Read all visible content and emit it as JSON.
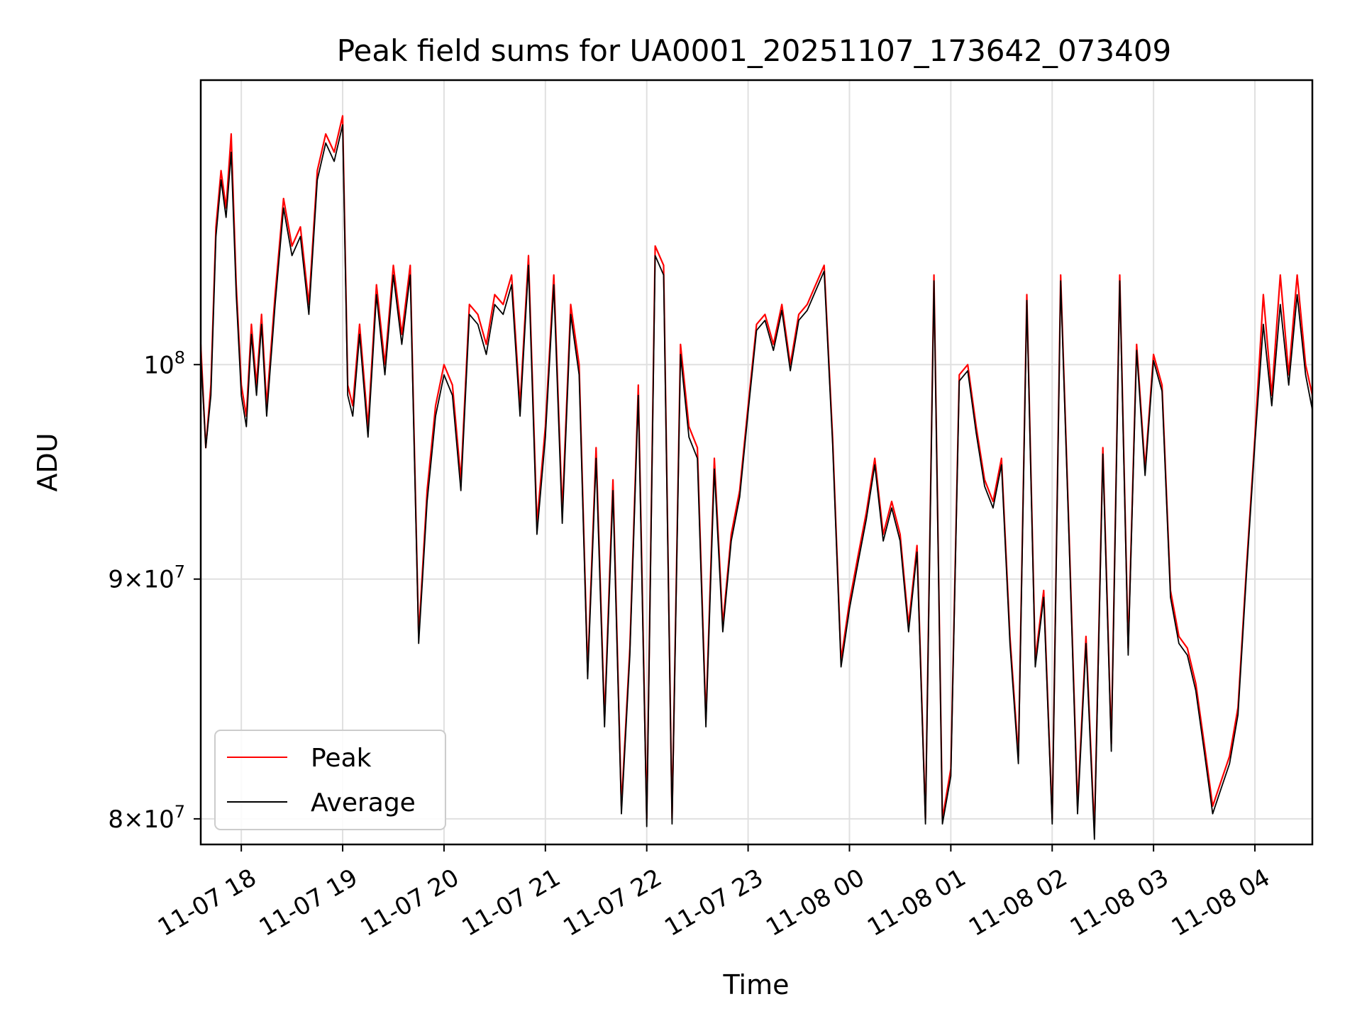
{
  "chart_data": {
    "type": "line",
    "title": "Peak field sums for UA0001_20251107_173642_073409",
    "xlabel": "Time",
    "ylabel": "ADU",
    "y_scale": "log",
    "xlim": [
      "2025-11-07 17:36",
      "2025-11-08 04:34"
    ],
    "ylim": [
      79000000,
      115000000
    ],
    "x_ticks": [
      {
        "value": "2025-11-07 18:00",
        "label": "11-07 18"
      },
      {
        "value": "2025-11-07 19:00",
        "label": "11-07 19"
      },
      {
        "value": "2025-11-07 20:00",
        "label": "11-07 20"
      },
      {
        "value": "2025-11-07 21:00",
        "label": "11-07 21"
      },
      {
        "value": "2025-11-07 22:00",
        "label": "11-07 22"
      },
      {
        "value": "2025-11-07 23:00",
        "label": "11-07 23"
      },
      {
        "value": "2025-11-08 00:00",
        "label": "11-08 00"
      },
      {
        "value": "2025-11-08 01:00",
        "label": "11-08 01"
      },
      {
        "value": "2025-11-08 02:00",
        "label": "11-08 02"
      },
      {
        "value": "2025-11-08 03:00",
        "label": "11-08 03"
      },
      {
        "value": "2025-11-08 04:00",
        "label": "11-08 04"
      }
    ],
    "y_ticks": [
      {
        "value": 80000000,
        "mantissa": "8",
        "exponent": "7"
      },
      {
        "value": 90000000,
        "mantissa": "9",
        "exponent": "7"
      },
      {
        "value": 100000000,
        "mantissa": "10",
        "exponent": "8"
      }
    ],
    "grid": true,
    "legend_position": "lower-left",
    "x": [
      "2025-11-07 17:36",
      "2025-11-07 17:39",
      "2025-11-07 17:42",
      "2025-11-07 17:45",
      "2025-11-07 17:48",
      "2025-11-07 17:51",
      "2025-11-07 17:54",
      "2025-11-07 17:57",
      "2025-11-07 18:00",
      "2025-11-07 18:03",
      "2025-11-07 18:06",
      "2025-11-07 18:09",
      "2025-11-07 18:12",
      "2025-11-07 18:15",
      "2025-11-07 18:20",
      "2025-11-07 18:25",
      "2025-11-07 18:30",
      "2025-11-07 18:35",
      "2025-11-07 18:40",
      "2025-11-07 18:45",
      "2025-11-07 18:50",
      "2025-11-07 18:55",
      "2025-11-07 19:00",
      "2025-11-07 19:03",
      "2025-11-07 19:06",
      "2025-11-07 19:10",
      "2025-11-07 19:15",
      "2025-11-07 19:20",
      "2025-11-07 19:25",
      "2025-11-07 19:30",
      "2025-11-07 19:35",
      "2025-11-07 19:40",
      "2025-11-07 19:45",
      "2025-11-07 19:50",
      "2025-11-07 19:55",
      "2025-11-07 20:00",
      "2025-11-07 20:05",
      "2025-11-07 20:10",
      "2025-11-07 20:15",
      "2025-11-07 20:20",
      "2025-11-07 20:25",
      "2025-11-07 20:30",
      "2025-11-07 20:35",
      "2025-11-07 20:40",
      "2025-11-07 20:45",
      "2025-11-07 20:50",
      "2025-11-07 20:55",
      "2025-11-07 21:00",
      "2025-11-07 21:05",
      "2025-11-07 21:10",
      "2025-11-07 21:15",
      "2025-11-07 21:20",
      "2025-11-07 21:25",
      "2025-11-07 21:30",
      "2025-11-07 21:35",
      "2025-11-07 21:40",
      "2025-11-07 21:45",
      "2025-11-07 21:50",
      "2025-11-07 21:55",
      "2025-11-07 22:00",
      "2025-11-07 22:05",
      "2025-11-07 22:10",
      "2025-11-07 22:15",
      "2025-11-07 22:20",
      "2025-11-07 22:25",
      "2025-11-07 22:30",
      "2025-11-07 22:35",
      "2025-11-07 22:40",
      "2025-11-07 22:45",
      "2025-11-07 22:50",
      "2025-11-07 22:55",
      "2025-11-07 23:00",
      "2025-11-07 23:05",
      "2025-11-07 23:10",
      "2025-11-07 23:15",
      "2025-11-07 23:20",
      "2025-11-07 23:25",
      "2025-11-07 23:30",
      "2025-11-07 23:35",
      "2025-11-07 23:40",
      "2025-11-07 23:45",
      "2025-11-07 23:50",
      "2025-11-07 23:55",
      "2025-11-08 00:00",
      "2025-11-08 00:05",
      "2025-11-08 00:10",
      "2025-11-08 00:15",
      "2025-11-08 00:20",
      "2025-11-08 00:25",
      "2025-11-08 00:30",
      "2025-11-08 00:35",
      "2025-11-08 00:40",
      "2025-11-08 00:45",
      "2025-11-08 00:50",
      "2025-11-08 00:55",
      "2025-11-08 01:00",
      "2025-11-08 01:05",
      "2025-11-08 01:10",
      "2025-11-08 01:15",
      "2025-11-08 01:20",
      "2025-11-08 01:25",
      "2025-11-08 01:30",
      "2025-11-08 01:35",
      "2025-11-08 01:40",
      "2025-11-08 01:45",
      "2025-11-08 01:50",
      "2025-11-08 01:55",
      "2025-11-08 02:00",
      "2025-11-08 02:05",
      "2025-11-08 02:10",
      "2025-11-08 02:15",
      "2025-11-08 02:20",
      "2025-11-08 02:25",
      "2025-11-08 02:30",
      "2025-11-08 02:35",
      "2025-11-08 02:40",
      "2025-11-08 02:45",
      "2025-11-08 02:50",
      "2025-11-08 02:55",
      "2025-11-08 03:00",
      "2025-11-08 03:05",
      "2025-11-08 03:10",
      "2025-11-08 03:15",
      "2025-11-08 03:20",
      "2025-11-08 03:25",
      "2025-11-08 03:30",
      "2025-11-08 03:35",
      "2025-11-08 03:40",
      "2025-11-08 03:45",
      "2025-11-08 03:50",
      "2025-11-08 03:55",
      "2025-11-08 04:00",
      "2025-11-08 04:05",
      "2025-11-08 04:10",
      "2025-11-08 04:15",
      "2025-11-08 04:20",
      "2025-11-08 04:25",
      "2025-11-08 04:30",
      "2025-11-08 04:34"
    ],
    "series": [
      {
        "name": "Peak",
        "color": "#ff0000",
        "values": [
          101000000,
          96000000,
          99000000,
          107000000,
          110000000,
          108000000,
          112000000,
          104000000,
          99000000,
          97500000,
          102000000,
          99000000,
          102500000,
          98000000,
          103500000,
          108500000,
          106000000,
          107000000,
          103000000,
          110000000,
          112000000,
          111000000,
          113000000,
          99000000,
          98000000,
          102000000,
          97000000,
          104000000,
          100000000,
          105000000,
          101500000,
          105000000,
          87500000,
          94000000,
          98000000,
          100000000,
          99000000,
          94500000,
          103000000,
          102500000,
          101000000,
          103500000,
          103000000,
          104500000,
          98000000,
          105500000,
          92500000,
          97000000,
          104500000,
          93000000,
          103000000,
          100000000,
          86000000,
          96000000,
          84000000,
          94500000,
          80500000,
          87000000,
          99000000,
          80000000,
          106000000,
          105000000,
          80000000,
          101000000,
          97000000,
          96000000,
          84000000,
          95500000,
          88000000,
          92000000,
          94000000,
          98000000,
          102000000,
          102500000,
          101000000,
          103000000,
          100000000,
          102500000,
          103000000,
          104000000,
          105000000,
          96500000,
          86500000,
          89000000,
          91000000,
          93000000,
          95500000,
          92000000,
          93500000,
          92000000,
          88000000,
          91500000,
          80000000,
          104500000,
          80000000,
          82000000,
          99500000,
          100000000,
          97000000,
          94500000,
          93500000,
          95500000,
          87500000,
          82500000,
          103500000,
          86500000,
          89500000,
          80000000,
          104500000,
          92000000,
          80500000,
          87500000,
          79500000,
          96000000,
          83000000,
          104500000,
          87000000,
          101000000,
          95000000,
          100500000,
          99000000,
          89500000,
          87500000,
          87000000,
          85500000,
          83000000,
          80500000,
          81500000,
          82500000,
          84500000,
          90500000,
          96500000,
          103500000,
          98500000,
          104500000,
          99500000,
          104500000,
          100000000,
          98500000
        ]
      },
      {
        "name": "Average",
        "color": "#000000",
        "values": [
          100500000,
          96000000,
          98500000,
          106500000,
          109500000,
          107500000,
          111000000,
          103500000,
          98500000,
          97000000,
          101500000,
          98500000,
          102000000,
          97500000,
          103000000,
          108000000,
          105500000,
          106500000,
          102500000,
          109500000,
          111500000,
          110500000,
          112500000,
          98500000,
          97500000,
          101500000,
          96500000,
          103500000,
          99500000,
          104500000,
          101000000,
          104500000,
          87200000,
          93500000,
          97500000,
          99500000,
          98500000,
          94000000,
          102500000,
          102000000,
          100500000,
          103000000,
          102500000,
          104000000,
          97500000,
          105000000,
          92000000,
          96500000,
          104000000,
          92500000,
          102500000,
          99500000,
          85700000,
          95500000,
          83700000,
          94000000,
          80200000,
          86700000,
          98500000,
          79700000,
          105500000,
          104500000,
          79800000,
          100500000,
          96500000,
          95500000,
          83700000,
          95000000,
          87700000,
          91700000,
          93700000,
          97700000,
          101700000,
          102200000,
          100700000,
          102700000,
          99700000,
          102200000,
          102700000,
          103700000,
          104700000,
          96200000,
          86200000,
          88700000,
          90700000,
          92700000,
          95200000,
          91700000,
          93200000,
          91700000,
          87700000,
          91200000,
          79800000,
          104200000,
          79800000,
          81700000,
          99200000,
          99700000,
          96700000,
          94200000,
          93200000,
          95200000,
          87200000,
          82200000,
          103200000,
          86200000,
          89200000,
          79800000,
          104200000,
          91700000,
          80200000,
          87200000,
          79200000,
          95700000,
          82700000,
          104200000,
          86700000,
          100700000,
          94700000,
          100200000,
          98700000,
          89200000,
          87200000,
          86700000,
          85200000,
          82700000,
          80200000,
          81200000,
          82200000,
          84200000,
          90200000,
          96200000,
          102000000,
          98000000,
          103000000,
          99000000,
          103500000,
          99500000,
          97800000
        ]
      }
    ]
  }
}
